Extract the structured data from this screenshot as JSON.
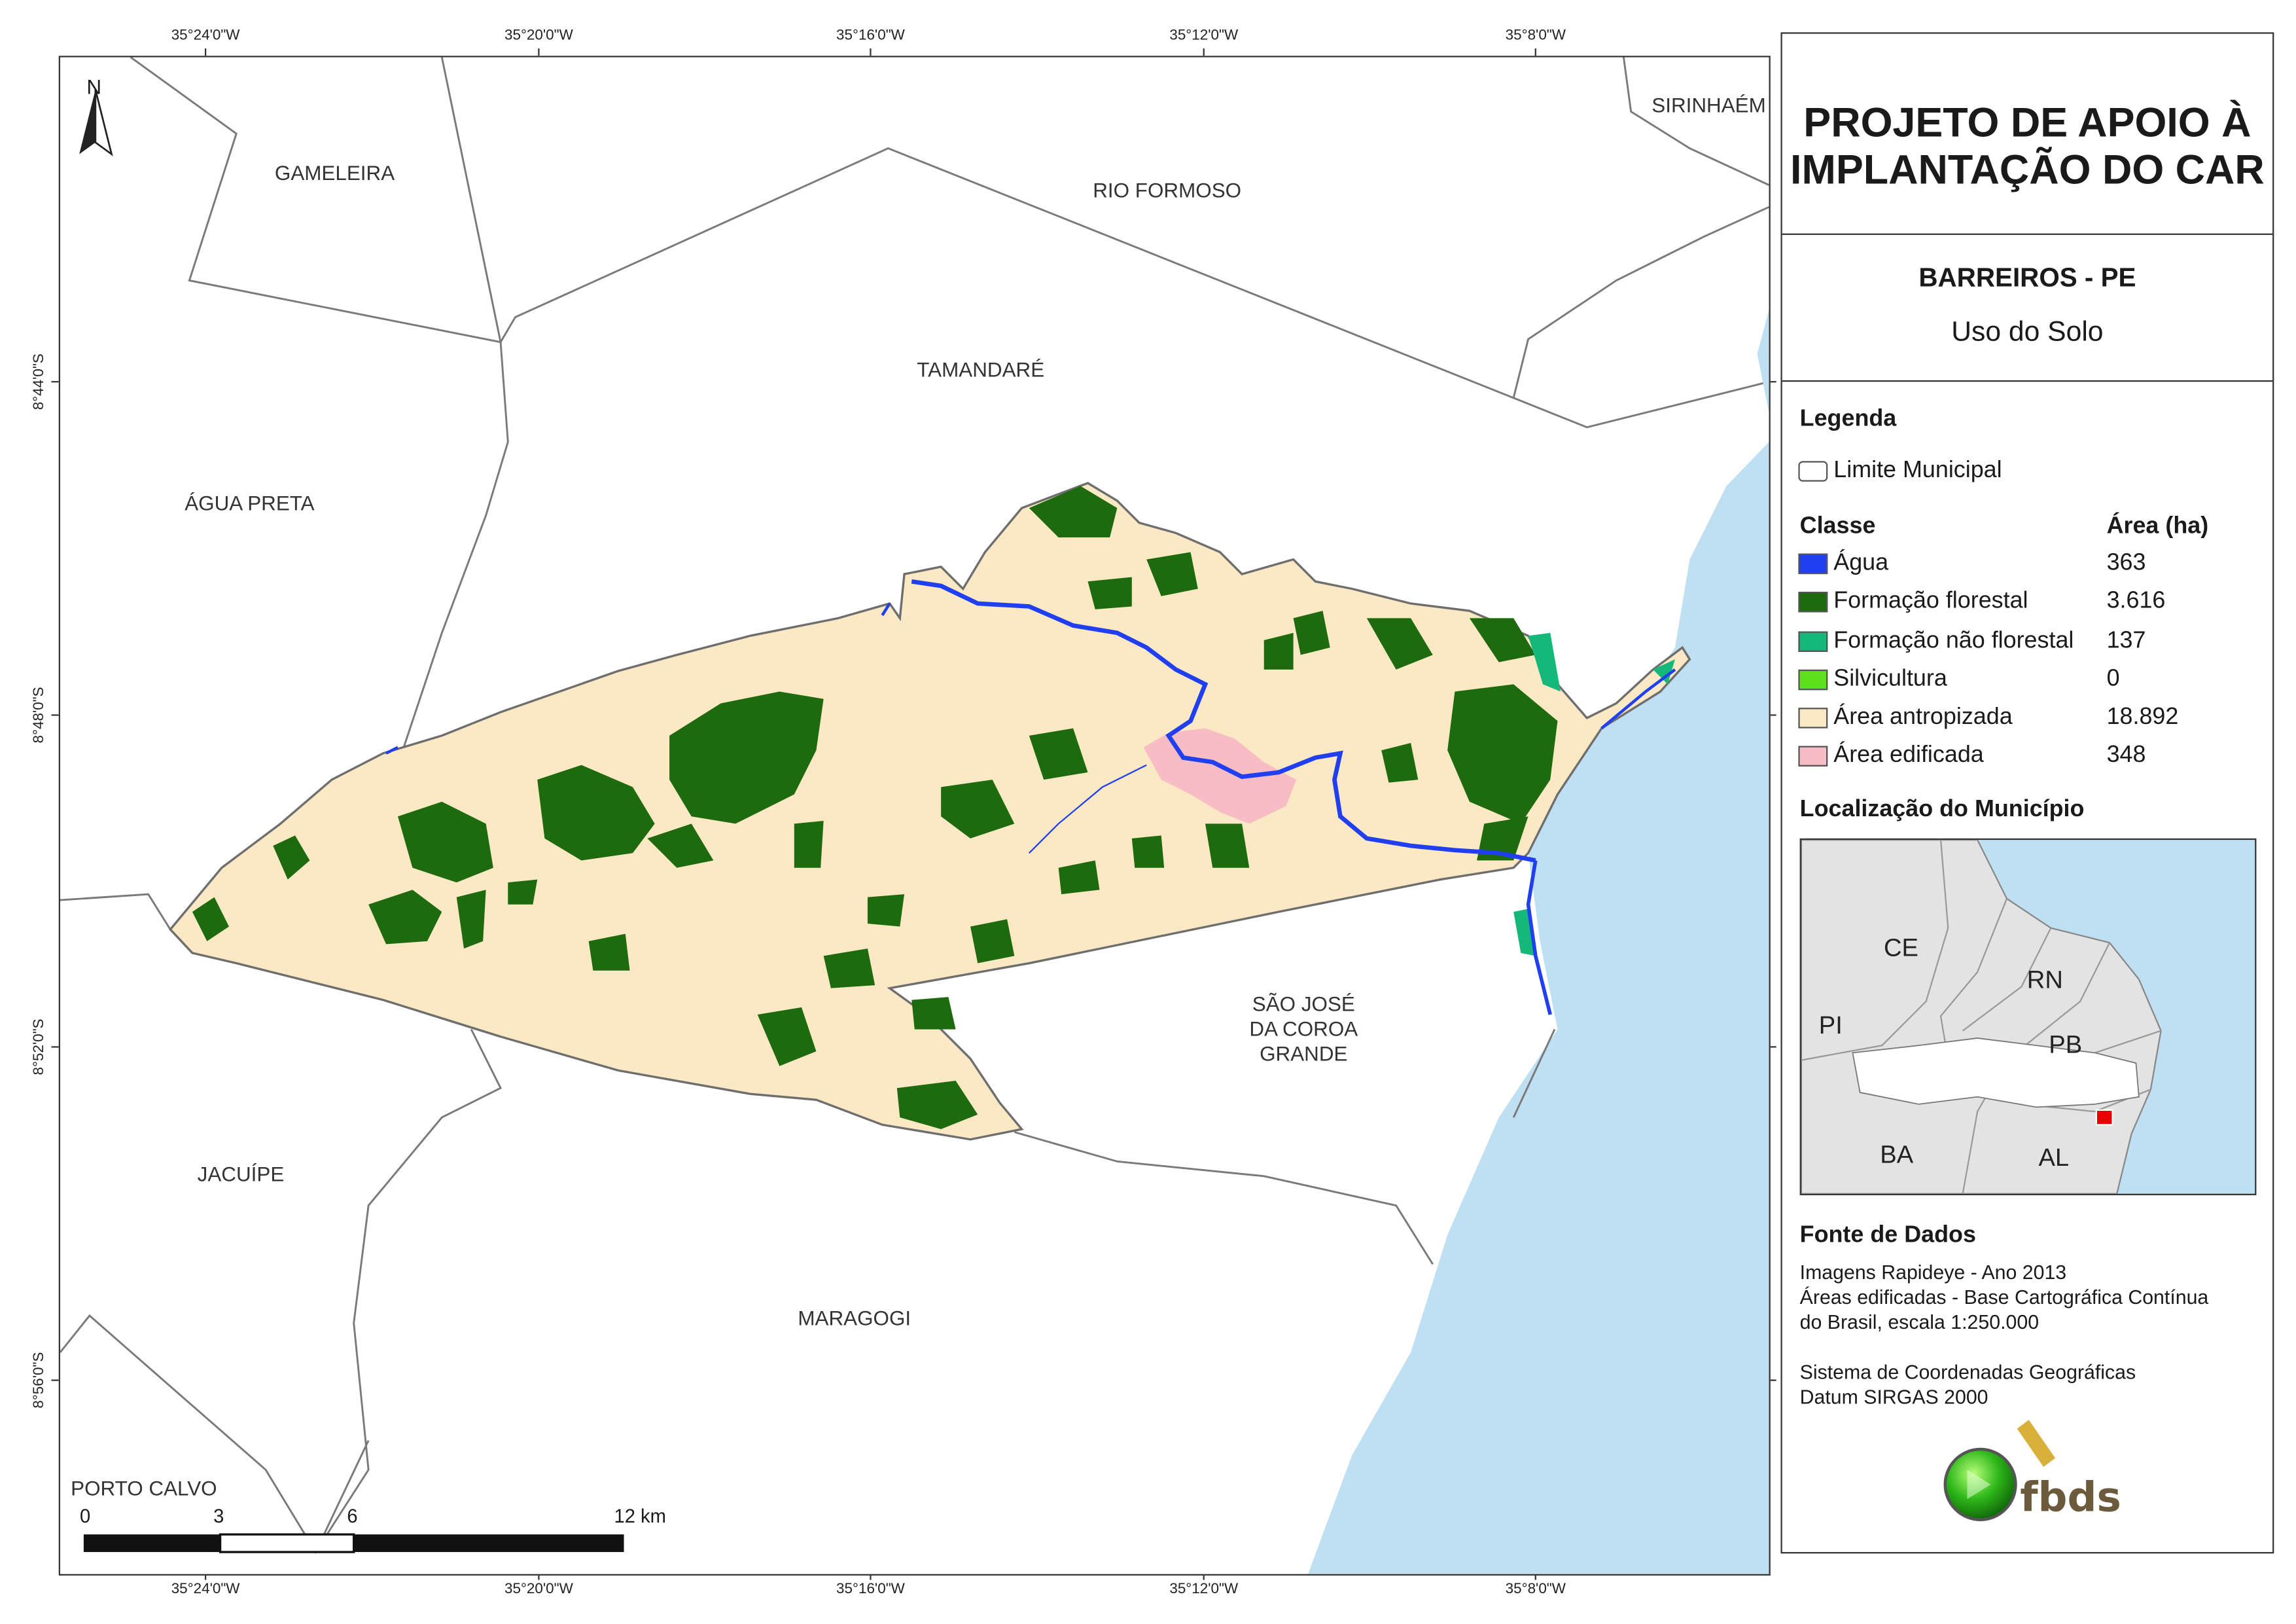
{
  "coords": {
    "top": [
      "35°24'0\"W",
      "35°20'0\"W",
      "35°16'0\"W",
      "35°12'0\"W",
      "35°8'0\"W"
    ],
    "bottom": [
      "35°24'0\"W",
      "35°20'0\"W",
      "35°16'0\"W",
      "35°12'0\"W",
      "35°8'0\"W"
    ],
    "left": [
      "8°44'0\"S",
      "8°48'0\"S",
      "8°52'0\"S",
      "8°56'0\"S"
    ]
  },
  "map": {
    "north_label": "N",
    "municipalities": {
      "gameleira": "GAMELEIRA",
      "rio_formoso": "RIO FORMOSO",
      "sirinhaem": "SIRINHAÉM",
      "tamandare": "TAMANDARÉ",
      "agua_preta": "ÁGUA PRETA",
      "sao_jose": [
        "SÃO JOSÉ",
        "DA COROA",
        "GRANDE"
      ],
      "jacuipe": "JACUÍPE",
      "maragogi": "MARAGOGI",
      "porto_calvo": "PORTO CALVO"
    },
    "scale": {
      "labels": [
        "0",
        "3",
        "6",
        "12 km"
      ]
    }
  },
  "panel": {
    "title_line1": "PROJETO DE APOIO À",
    "title_line2": "IMPLANTAÇÃO DO CAR",
    "subtitle": "BARREIROS - PE",
    "theme": "Uso do Solo",
    "legend_heading": "Legenda",
    "limit_label": "Limite Municipal",
    "class_heading": "Classe",
    "area_heading": "Área (ha)",
    "classes": [
      {
        "label": "Água",
        "area": "363",
        "color": "#1f3ff0"
      },
      {
        "label": "Formação florestal",
        "area": "3.616",
        "color": "#1d6b0e"
      },
      {
        "label": "Formação não florestal",
        "area": "137",
        "color": "#14b87a"
      },
      {
        "label": "Silvicultura",
        "area": "0",
        "color": "#5fe01c"
      },
      {
        "label": "Área antropizada",
        "area": "18.892",
        "color": "#fbe8c4"
      },
      {
        "label": "Área edificada",
        "area": "348",
        "color": "#f7bcc4"
      }
    ],
    "location_heading": "Localização do Município",
    "location_labels": {
      "ce": "CE",
      "rn": "RN",
      "pi": "PI",
      "pb": "PB",
      "ba": "BA",
      "al": "AL"
    },
    "source_heading": "Fonte de Dados",
    "source_lines": [
      "Imagens Rapideye - Ano 2013",
      "Áreas edificadas - Base Cartográfica Contínua",
      "do Brasil, escala 1:250.000"
    ],
    "crs_lines": [
      "Sistema de Coordenadas Geográficas",
      "Datum SIRGAS 2000"
    ],
    "logo_text": "fbds"
  },
  "colors": {
    "sea": "#bfe0f2",
    "land_outside": "#ffffff",
    "border": "#7a7a7a"
  }
}
